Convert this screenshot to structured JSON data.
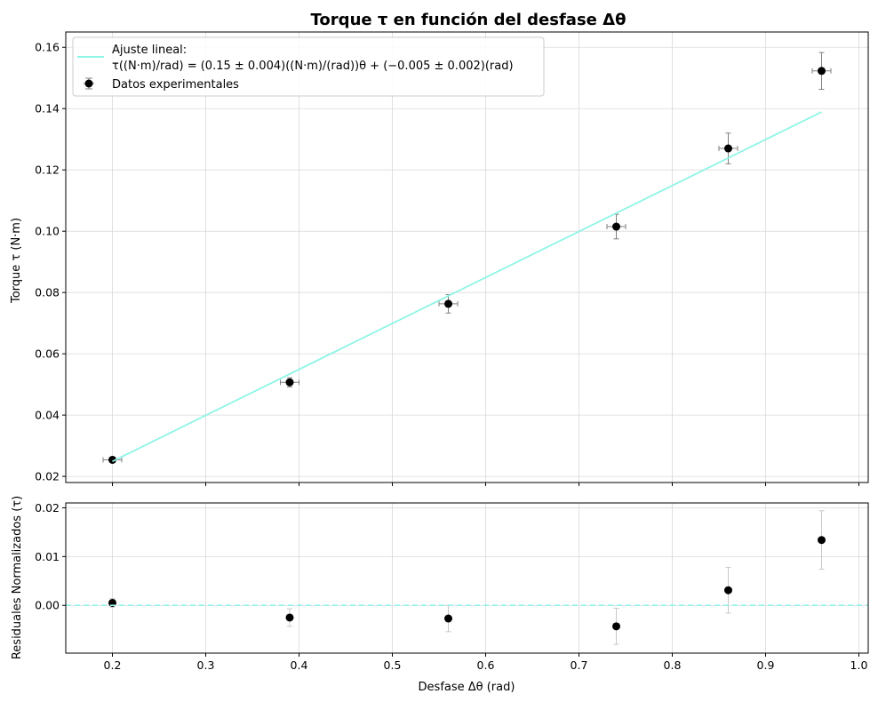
{
  "title": "Torque τ en función del desfase Δθ",
  "chart_data": [
    {
      "type": "scatter",
      "panel": "main",
      "xlabel": "",
      "ylabel": "Torque τ (N·m)",
      "xlim": [
        0.15,
        1.01
      ],
      "ylim": [
        0.018,
        0.165
      ],
      "yticks": [
        "0.02",
        "0.04",
        "0.06",
        "0.08",
        "0.10",
        "0.12",
        "0.14",
        "0.16"
      ],
      "ytick_values": [
        0.02,
        0.04,
        0.06,
        0.08,
        0.1,
        0.12,
        0.14,
        0.16
      ],
      "xtick_values": [
        0.2,
        0.3,
        0.4,
        0.5,
        0.6,
        0.7,
        0.8,
        0.9,
        1.0
      ],
      "grid": true,
      "legend_position": "top-left",
      "series": [
        {
          "name": "Datos experimentales",
          "kind": "errorbar-points",
          "color": "#000000",
          "ecolor": "#808080",
          "x": [
            0.2,
            0.39,
            0.56,
            0.74,
            0.86,
            0.96
          ],
          "y": [
            0.0254,
            0.0507,
            0.0763,
            0.1015,
            0.127,
            0.1523
          ],
          "xerr": [
            0.01,
            0.01,
            0.01,
            0.01,
            0.01,
            0.01
          ],
          "yerr": [
            0.0009,
            0.0015,
            0.003,
            0.004,
            0.005,
            0.006
          ]
        },
        {
          "name": "Ajuste lineal:",
          "name_line2": "τ((N·m)/rad) = (0.15 ± 0.004)((N·m)/(rad))θ + (−0.005 ± 0.002)(rad)",
          "kind": "line",
          "color": "#8ff5e6",
          "x": [
            0.2,
            0.96
          ],
          "y": [
            0.0249,
            0.1389
          ]
        }
      ]
    },
    {
      "type": "scatter",
      "panel": "residuals",
      "xlabel": "Desfase Δθ (rad)",
      "ylabel": "Residuales Normalizados (τ)",
      "xlim": [
        0.15,
        1.01
      ],
      "ylim": [
        -0.0098,
        0.021
      ],
      "xticks": [
        "0.2",
        "0.3",
        "0.4",
        "0.5",
        "0.6",
        "0.7",
        "0.8",
        "0.9",
        "1.0"
      ],
      "xtick_values": [
        0.2,
        0.3,
        0.4,
        0.5,
        0.6,
        0.7,
        0.8,
        0.9,
        1.0
      ],
      "yticks": [
        "0.00",
        "0.01",
        "0.02"
      ],
      "ytick_values": [
        0.0,
        0.01,
        0.02
      ],
      "grid": true,
      "series": [
        {
          "kind": "errorbar-points",
          "color": "#000000",
          "ecolor": "#c8c8c8",
          "x": [
            0.2,
            0.39,
            0.56,
            0.74,
            0.86,
            0.96
          ],
          "y": [
            0.0005,
            -0.0025,
            -0.0027,
            -0.0043,
            0.0031,
            0.0134
          ],
          "yerr": [
            0.0009,
            0.0018,
            0.0027,
            0.0037,
            0.0047,
            0.006
          ]
        },
        {
          "kind": "hline",
          "color": "#8ff5e6",
          "y": 0.0
        }
      ]
    }
  ]
}
